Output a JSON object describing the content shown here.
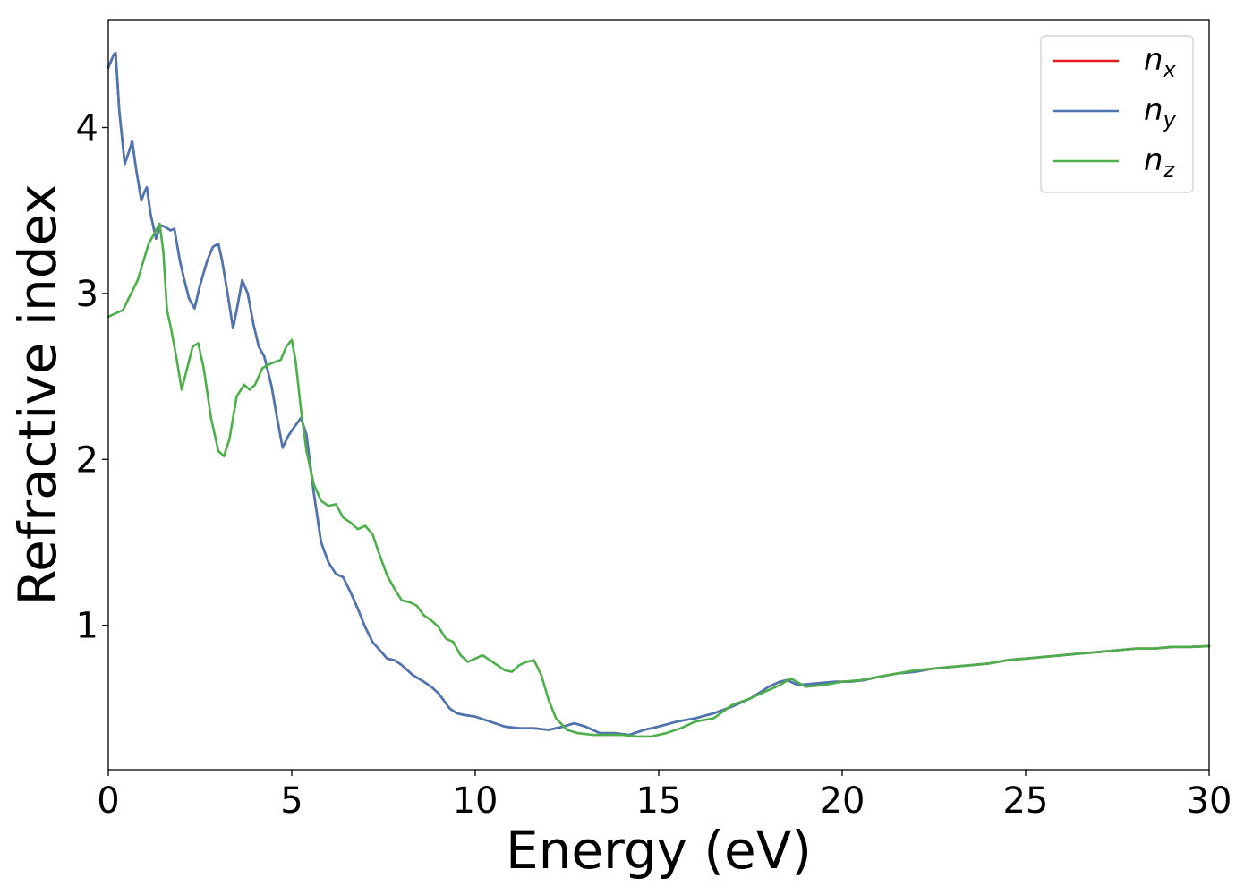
{
  "chart_data": {
    "type": "line",
    "title": "",
    "xlabel": "Energy (eV)",
    "ylabel": "Refractive index",
    "xlim": [
      0,
      30
    ],
    "ylim": [
      0.13,
      4.65
    ],
    "xticks": [
      0,
      5,
      10,
      15,
      20,
      25,
      30
    ],
    "yticks": [
      1,
      2,
      3,
      4
    ],
    "grid": false,
    "legend_position": "top-right",
    "series": [
      {
        "name": "n_x",
        "label_base": "n",
        "label_sub": "x",
        "color": "#e41a1c",
        "x": [
          0,
          0.15,
          0.2,
          0.3,
          0.45,
          0.6,
          0.65,
          0.75,
          0.9,
          1.0,
          1.05,
          1.15,
          1.3,
          1.4,
          1.45,
          1.55,
          1.7,
          1.8,
          1.95,
          2.05,
          2.2,
          2.35,
          2.5,
          2.7,
          2.85,
          3.0,
          3.1,
          3.25,
          3.4,
          3.5,
          3.65,
          3.8,
          3.95,
          4.1,
          4.25,
          4.45,
          4.6,
          4.75,
          4.9,
          5.05,
          5.25,
          5.4,
          5.6,
          5.8,
          6.0,
          6.2,
          6.4,
          6.6,
          6.8,
          7.0,
          7.2,
          7.4,
          7.6,
          7.8,
          8.0,
          8.3,
          8.6,
          8.8,
          9.0,
          9.3,
          9.5,
          9.7,
          10.0,
          10.4,
          10.8,
          11.2,
          11.6,
          12.0,
          12.4,
          12.7,
          13.0,
          13.4,
          13.8,
          14.2,
          14.6,
          15.0,
          15.5,
          16.0,
          16.5,
          17.0,
          17.5,
          18.0,
          18.3,
          18.5,
          18.8,
          19.3,
          19.8,
          20.2,
          20.6,
          21.0,
          21.5,
          22.0,
          22.5,
          23.0,
          23.5,
          24.0,
          24.5,
          25.0,
          25.5,
          26.0,
          26.5,
          27.0,
          27.5,
          28.0,
          28.5,
          29.0,
          29.5,
          30.0
        ],
        "y": [
          4.36,
          4.44,
          4.45,
          4.1,
          3.78,
          3.88,
          3.92,
          3.76,
          3.56,
          3.62,
          3.64,
          3.48,
          3.33,
          3.4,
          3.41,
          3.4,
          3.38,
          3.39,
          3.2,
          3.1,
          2.97,
          2.91,
          3.05,
          3.2,
          3.28,
          3.3,
          3.2,
          3.0,
          2.79,
          2.9,
          3.08,
          3.0,
          2.82,
          2.68,
          2.62,
          2.44,
          2.25,
          2.07,
          2.14,
          2.19,
          2.25,
          2.15,
          1.8,
          1.5,
          1.38,
          1.31,
          1.29,
          1.2,
          1.1,
          0.99,
          0.9,
          0.85,
          0.8,
          0.79,
          0.76,
          0.7,
          0.66,
          0.63,
          0.59,
          0.5,
          0.47,
          0.46,
          0.45,
          0.42,
          0.39,
          0.38,
          0.38,
          0.37,
          0.39,
          0.41,
          0.39,
          0.35,
          0.35,
          0.34,
          0.37,
          0.39,
          0.42,
          0.44,
          0.47,
          0.51,
          0.56,
          0.63,
          0.66,
          0.67,
          0.64,
          0.65,
          0.66,
          0.66,
          0.67,
          0.69,
          0.71,
          0.72,
          0.74,
          0.75,
          0.76,
          0.77,
          0.79,
          0.8,
          0.81,
          0.82,
          0.83,
          0.84,
          0.85,
          0.86,
          0.86,
          0.87,
          0.87,
          0.875
        ]
      },
      {
        "name": "n_y",
        "label_base": "n",
        "label_sub": "y",
        "color": "#4a77b4",
        "x": [
          0,
          0.15,
          0.2,
          0.3,
          0.45,
          0.6,
          0.65,
          0.75,
          0.9,
          1.0,
          1.05,
          1.15,
          1.3,
          1.4,
          1.45,
          1.55,
          1.7,
          1.8,
          1.95,
          2.05,
          2.2,
          2.35,
          2.5,
          2.7,
          2.85,
          3.0,
          3.1,
          3.25,
          3.4,
          3.5,
          3.65,
          3.8,
          3.95,
          4.1,
          4.25,
          4.45,
          4.6,
          4.75,
          4.9,
          5.05,
          5.25,
          5.4,
          5.6,
          5.8,
          6.0,
          6.2,
          6.4,
          6.6,
          6.8,
          7.0,
          7.2,
          7.4,
          7.6,
          7.8,
          8.0,
          8.3,
          8.6,
          8.8,
          9.0,
          9.3,
          9.5,
          9.7,
          10.0,
          10.4,
          10.8,
          11.2,
          11.6,
          12.0,
          12.4,
          12.7,
          13.0,
          13.4,
          13.8,
          14.2,
          14.6,
          15.0,
          15.5,
          16.0,
          16.5,
          17.0,
          17.5,
          18.0,
          18.3,
          18.5,
          18.8,
          19.3,
          19.8,
          20.2,
          20.6,
          21.0,
          21.5,
          22.0,
          22.5,
          23.0,
          23.5,
          24.0,
          24.5,
          25.0,
          25.5,
          26.0,
          26.5,
          27.0,
          27.5,
          28.0,
          28.5,
          29.0,
          29.5,
          30.0
        ],
        "y": [
          4.36,
          4.44,
          4.45,
          4.1,
          3.78,
          3.88,
          3.92,
          3.76,
          3.56,
          3.62,
          3.64,
          3.48,
          3.33,
          3.4,
          3.41,
          3.4,
          3.38,
          3.39,
          3.2,
          3.1,
          2.97,
          2.91,
          3.05,
          3.2,
          3.28,
          3.3,
          3.2,
          3.0,
          2.79,
          2.9,
          3.08,
          3.0,
          2.82,
          2.68,
          2.62,
          2.44,
          2.25,
          2.07,
          2.14,
          2.19,
          2.25,
          2.15,
          1.8,
          1.5,
          1.38,
          1.31,
          1.29,
          1.2,
          1.1,
          0.99,
          0.9,
          0.85,
          0.8,
          0.79,
          0.76,
          0.7,
          0.66,
          0.63,
          0.59,
          0.5,
          0.47,
          0.46,
          0.45,
          0.42,
          0.39,
          0.38,
          0.38,
          0.37,
          0.39,
          0.41,
          0.39,
          0.35,
          0.35,
          0.34,
          0.37,
          0.39,
          0.42,
          0.44,
          0.47,
          0.51,
          0.56,
          0.63,
          0.66,
          0.67,
          0.64,
          0.65,
          0.66,
          0.66,
          0.67,
          0.69,
          0.71,
          0.72,
          0.74,
          0.75,
          0.76,
          0.77,
          0.79,
          0.8,
          0.81,
          0.82,
          0.83,
          0.84,
          0.85,
          0.86,
          0.86,
          0.87,
          0.87,
          0.875
        ]
      },
      {
        "name": "n_z",
        "label_base": "n",
        "label_sub": "z",
        "color": "#4daf4a",
        "x": [
          0,
          0.4,
          0.8,
          1.1,
          1.3,
          1.4,
          1.5,
          1.6,
          1.7,
          1.85,
          2.0,
          2.15,
          2.3,
          2.45,
          2.6,
          2.8,
          3.0,
          3.15,
          3.3,
          3.5,
          3.7,
          3.85,
          4.0,
          4.2,
          4.45,
          4.7,
          4.85,
          5.0,
          5.1,
          5.25,
          5.4,
          5.6,
          5.8,
          6.0,
          6.2,
          6.4,
          6.6,
          6.8,
          7.0,
          7.2,
          7.4,
          7.6,
          7.8,
          8.0,
          8.2,
          8.4,
          8.6,
          8.8,
          9.0,
          9.2,
          9.4,
          9.6,
          9.8,
          10.0,
          10.2,
          10.4,
          10.6,
          10.8,
          11.0,
          11.2,
          11.4,
          11.6,
          11.8,
          12.0,
          12.2,
          12.5,
          12.8,
          13.2,
          13.6,
          14.0,
          14.4,
          14.8,
          15.2,
          15.6,
          16.0,
          16.5,
          17.0,
          17.5,
          18.0,
          18.3,
          18.6,
          19.0,
          19.5,
          20.0,
          20.5,
          21.0,
          21.5,
          22.0,
          22.5,
          23.0,
          23.5,
          24.0,
          24.5,
          25.0,
          25.5,
          26.0,
          26.5,
          27.0,
          27.5,
          28.0,
          28.5,
          29.0,
          29.5,
          30.0
        ],
        "y": [
          2.86,
          2.9,
          3.08,
          3.3,
          3.38,
          3.42,
          3.25,
          2.9,
          2.8,
          2.62,
          2.42,
          2.55,
          2.68,
          2.7,
          2.55,
          2.25,
          2.05,
          2.02,
          2.12,
          2.38,
          2.45,
          2.42,
          2.45,
          2.55,
          2.58,
          2.6,
          2.68,
          2.72,
          2.6,
          2.3,
          2.05,
          1.85,
          1.75,
          1.72,
          1.73,
          1.65,
          1.62,
          1.58,
          1.6,
          1.55,
          1.42,
          1.3,
          1.22,
          1.15,
          1.14,
          1.12,
          1.06,
          1.03,
          0.99,
          0.92,
          0.9,
          0.82,
          0.78,
          0.8,
          0.82,
          0.79,
          0.76,
          0.73,
          0.72,
          0.76,
          0.78,
          0.79,
          0.7,
          0.55,
          0.44,
          0.37,
          0.35,
          0.34,
          0.34,
          0.34,
          0.33,
          0.33,
          0.35,
          0.38,
          0.42,
          0.44,
          0.52,
          0.56,
          0.61,
          0.64,
          0.68,
          0.63,
          0.64,
          0.66,
          0.67,
          0.69,
          0.71,
          0.73,
          0.74,
          0.75,
          0.76,
          0.77,
          0.79,
          0.8,
          0.81,
          0.82,
          0.83,
          0.84,
          0.85,
          0.86,
          0.86,
          0.87,
          0.87,
          0.875
        ]
      }
    ]
  }
}
